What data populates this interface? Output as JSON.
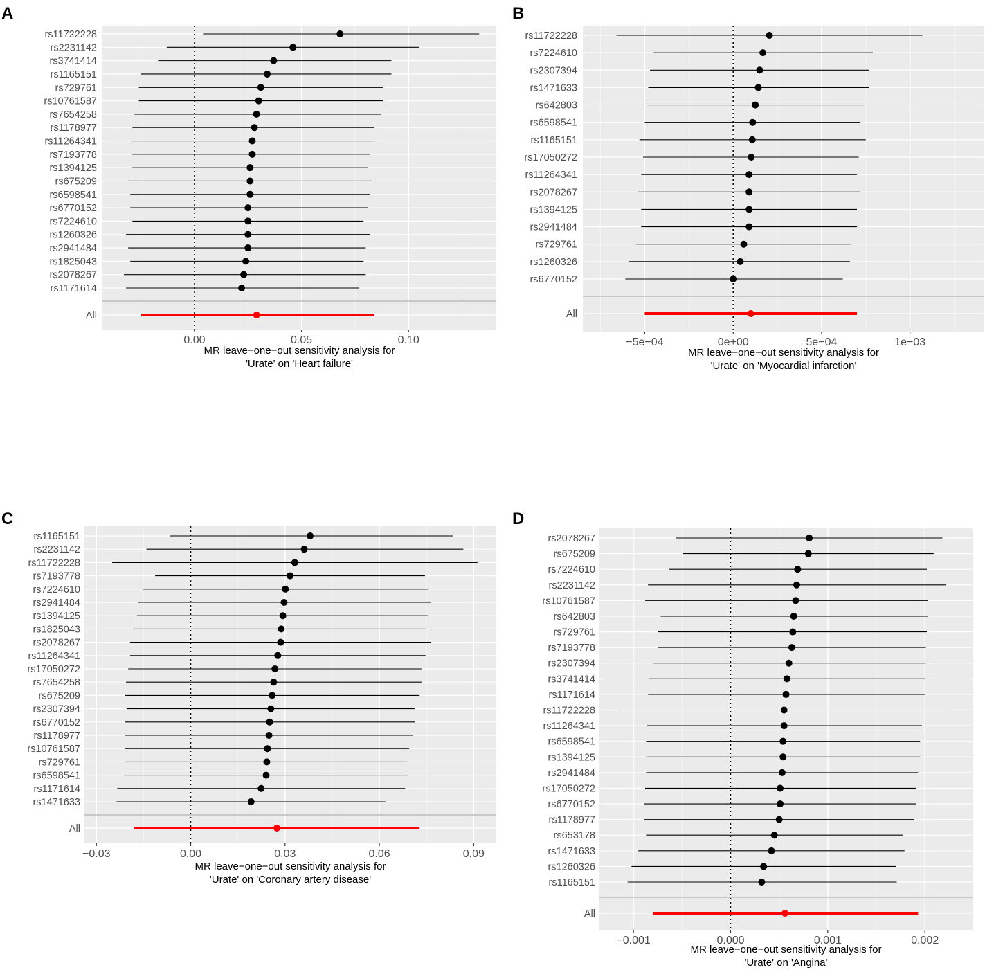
{
  "chart_data": [
    {
      "panel_label": "A",
      "type": "forest",
      "title": "",
      "xlabel_lines": [
        "MR leave−one−out sensitivity analysis for",
        "'Urate' on 'Heart failure'"
      ],
      "xlim": [
        -0.043,
        0.141
      ],
      "xticks": [
        0.0,
        0.05,
        0.1
      ],
      "xtick_labels": [
        "0.00",
        "0.05",
        "0.10"
      ],
      "snps": [
        {
          "label": "rs11722228",
          "b": 0.068,
          "lo": 0.004,
          "hi": 0.133
        },
        {
          "label": "rs2231142",
          "b": 0.046,
          "lo": -0.013,
          "hi": 0.105
        },
        {
          "label": "rs3741414",
          "b": 0.037,
          "lo": -0.017,
          "hi": 0.092
        },
        {
          "label": "rs1165151",
          "b": 0.034,
          "lo": -0.025,
          "hi": 0.092
        },
        {
          "label": "rs729761",
          "b": 0.031,
          "lo": -0.026,
          "hi": 0.088
        },
        {
          "label": "rs10761587",
          "b": 0.03,
          "lo": -0.026,
          "hi": 0.088
        },
        {
          "label": "rs7654258",
          "b": 0.029,
          "lo": -0.028,
          "hi": 0.087
        },
        {
          "label": "rs1178977",
          "b": 0.028,
          "lo": -0.029,
          "hi": 0.084
        },
        {
          "label": "rs11264341",
          "b": 0.027,
          "lo": -0.029,
          "hi": 0.084
        },
        {
          "label": "rs7193778",
          "b": 0.027,
          "lo": -0.029,
          "hi": 0.082
        },
        {
          "label": "rs1394125",
          "b": 0.026,
          "lo": -0.029,
          "hi": 0.081
        },
        {
          "label": "rs675209",
          "b": 0.026,
          "lo": -0.031,
          "hi": 0.083
        },
        {
          "label": "rs6598541",
          "b": 0.026,
          "lo": -0.03,
          "hi": 0.082
        },
        {
          "label": "rs6770152",
          "b": 0.025,
          "lo": -0.03,
          "hi": 0.081
        },
        {
          "label": "rs7224610",
          "b": 0.025,
          "lo": -0.029,
          "hi": 0.079
        },
        {
          "label": "rs1260326",
          "b": 0.025,
          "lo": -0.032,
          "hi": 0.082
        },
        {
          "label": "rs2941484",
          "b": 0.025,
          "lo": -0.031,
          "hi": 0.08
        },
        {
          "label": "rs1825043",
          "b": 0.024,
          "lo": -0.03,
          "hi": 0.079
        },
        {
          "label": "rs2078267",
          "b": 0.023,
          "lo": -0.033,
          "hi": 0.08
        },
        {
          "label": "rs1171614",
          "b": 0.022,
          "lo": -0.032,
          "hi": 0.077
        }
      ],
      "overall": {
        "label": "All",
        "b": 0.029,
        "lo": -0.025,
        "hi": 0.084
      }
    },
    {
      "panel_label": "B",
      "type": "forest",
      "title": "",
      "xlabel_lines": [
        "MR leave−one−out sensitivity analysis for",
        "'Urate' on 'Myocardial infarction'"
      ],
      "xlim": [
        -0.00085,
        0.00142
      ],
      "xticks": [
        -0.0005,
        0.0,
        0.0005,
        0.001
      ],
      "xtick_labels": [
        "−5e−04",
        "0e+00",
        "5e−04",
        "1e−03"
      ],
      "snps": [
        {
          "label": "rs11722228",
          "b": 0.000205,
          "lo": -0.00066,
          "hi": 0.00107
        },
        {
          "label": "rs7224610",
          "b": 0.000168,
          "lo": -0.00045,
          "hi": 0.00079
        },
        {
          "label": "rs2307394",
          "b": 0.00015,
          "lo": -0.00047,
          "hi": 0.00077
        },
        {
          "label": "rs1471633",
          "b": 0.000142,
          "lo": -0.00048,
          "hi": 0.00077
        },
        {
          "label": "rs642803",
          "b": 0.000125,
          "lo": -0.00049,
          "hi": 0.00074
        },
        {
          "label": "rs6598541",
          "b": 0.00011,
          "lo": -0.0005,
          "hi": 0.00072
        },
        {
          "label": "rs1165151",
          "b": 0.000108,
          "lo": -0.00053,
          "hi": 0.00075
        },
        {
          "label": "rs17050272",
          "b": 0.000102,
          "lo": -0.00051,
          "hi": 0.00071
        },
        {
          "label": "rs11264341",
          "b": 9e-05,
          "lo": -0.00052,
          "hi": 0.0007
        },
        {
          "label": "rs2078267",
          "b": 9e-05,
          "lo": -0.00054,
          "hi": 0.00072
        },
        {
          "label": "rs1394125",
          "b": 9e-05,
          "lo": -0.00052,
          "hi": 0.0007
        },
        {
          "label": "rs2941484",
          "b": 9e-05,
          "lo": -0.00052,
          "hi": 0.0007
        },
        {
          "label": "rs729761",
          "b": 6e-05,
          "lo": -0.00055,
          "hi": 0.00067
        },
        {
          "label": "rs1260326",
          "b": 4e-05,
          "lo": -0.00059,
          "hi": 0.00066
        },
        {
          "label": "rs6770152",
          "b": 0.0,
          "lo": -0.00061,
          "hi": 0.00062
        }
      ],
      "overall": {
        "label": "All",
        "b": 0.0001,
        "lo": -0.0005,
        "hi": 0.0007
      }
    },
    {
      "panel_label": "C",
      "type": "forest",
      "title": "",
      "xlabel_lines": [
        "MR leave−one−out sensitivity analysis for",
        "'Urate' on 'Coronary artery disease'"
      ],
      "xlim": [
        -0.0338,
        0.0972
      ],
      "xticks": [
        -0.03,
        0.0,
        0.03,
        0.06,
        0.09
      ],
      "xtick_labels": [
        "−0.03",
        "0.00",
        "0.03",
        "0.06",
        "0.09"
      ],
      "snps": [
        {
          "label": "rs1165151",
          "b": 0.038,
          "lo": -0.0065,
          "hi": 0.0834
        },
        {
          "label": "rs2231142",
          "b": 0.0361,
          "lo": -0.0141,
          "hi": 0.0867
        },
        {
          "label": "rs11722228",
          "b": 0.0331,
          "lo": -0.025,
          "hi": 0.0912
        },
        {
          "label": "rs7193778",
          "b": 0.0316,
          "lo": -0.0113,
          "hi": 0.0745
        },
        {
          "label": "rs7224610",
          "b": 0.0301,
          "lo": -0.0152,
          "hi": 0.0754
        },
        {
          "label": "rs2941484",
          "b": 0.0297,
          "lo": -0.0167,
          "hi": 0.0763
        },
        {
          "label": "rs1394125",
          "b": 0.0293,
          "lo": -0.0171,
          "hi": 0.0754
        },
        {
          "label": "rs1825043",
          "b": 0.0288,
          "lo": -0.018,
          "hi": 0.0752
        },
        {
          "label": "rs2078267",
          "b": 0.0286,
          "lo": -0.0193,
          "hi": 0.0763
        },
        {
          "label": "rs11264341",
          "b": 0.0277,
          "lo": -0.0193,
          "hi": 0.0747
        },
        {
          "label": "rs17050272",
          "b": 0.0268,
          "lo": -0.0199,
          "hi": 0.0734
        },
        {
          "label": "rs7654258",
          "b": 0.0264,
          "lo": -0.0206,
          "hi": 0.0734
        },
        {
          "label": "rs675209",
          "b": 0.0259,
          "lo": -0.021,
          "hi": 0.0728
        },
        {
          "label": "rs2307394",
          "b": 0.0255,
          "lo": -0.0204,
          "hi": 0.0713
        },
        {
          "label": "rs6770152",
          "b": 0.0251,
          "lo": -0.021,
          "hi": 0.0713
        },
        {
          "label": "rs1178977",
          "b": 0.0249,
          "lo": -0.021,
          "hi": 0.0708
        },
        {
          "label": "rs10761587",
          "b": 0.0244,
          "lo": -0.021,
          "hi": 0.0695
        },
        {
          "label": "rs729761",
          "b": 0.0242,
          "lo": -0.021,
          "hi": 0.0693
        },
        {
          "label": "rs6598541",
          "b": 0.024,
          "lo": -0.0212,
          "hi": 0.069
        },
        {
          "label": "rs1171614",
          "b": 0.0224,
          "lo": -0.0234,
          "hi": 0.0682
        },
        {
          "label": "rs1471633",
          "b": 0.0192,
          "lo": -0.0236,
          "hi": 0.0619
        }
      ],
      "overall": {
        "label": "All",
        "b": 0.0274,
        "lo": -0.018,
        "hi": 0.0728
      }
    },
    {
      "panel_label": "D",
      "type": "forest",
      "title": "",
      "xlabel_lines": [
        "MR leave−one−out sensitivity analysis for",
        "'Urate' on 'Angina'"
      ],
      "xlim": [
        -0.00135,
        0.00249
      ],
      "xticks": [
        -0.001,
        0.0,
        0.001,
        0.002
      ],
      "xtick_labels": [
        "−0.001",
        "0.000",
        "0.001",
        "0.002"
      ],
      "snps": [
        {
          "label": "rs2078267",
          "b": 0.00081,
          "lo": -0.00056,
          "hi": 0.00218
        },
        {
          "label": "rs675209",
          "b": 0.0008,
          "lo": -0.00049,
          "hi": 0.00209
        },
        {
          "label": "rs7224610",
          "b": 0.00069,
          "lo": -0.00063,
          "hi": 0.00202
        },
        {
          "label": "rs2231142",
          "b": 0.00068,
          "lo": -0.00085,
          "hi": 0.00222
        },
        {
          "label": "rs10761587",
          "b": 0.00067,
          "lo": -0.00088,
          "hi": 0.00203
        },
        {
          "label": "rs642803",
          "b": 0.00065,
          "lo": -0.00072,
          "hi": 0.00203
        },
        {
          "label": "rs729761",
          "b": 0.00064,
          "lo": -0.00075,
          "hi": 0.00202
        },
        {
          "label": "rs7193778",
          "b": 0.00063,
          "lo": -0.00075,
          "hi": 0.00201
        },
        {
          "label": "rs2307394",
          "b": 0.0006,
          "lo": -0.0008,
          "hi": 0.00201
        },
        {
          "label": "rs3741414",
          "b": 0.00058,
          "lo": -0.00084,
          "hi": 0.00201
        },
        {
          "label": "rs1171614",
          "b": 0.00057,
          "lo": -0.00085,
          "hi": 0.002
        },
        {
          "label": "rs11722228",
          "b": 0.00055,
          "lo": -0.00118,
          "hi": 0.00228
        },
        {
          "label": "rs11264341",
          "b": 0.00055,
          "lo": -0.00086,
          "hi": 0.00197
        },
        {
          "label": "rs6598541",
          "b": 0.00054,
          "lo": -0.00087,
          "hi": 0.00195
        },
        {
          "label": "rs1394125",
          "b": 0.00054,
          "lo": -0.00087,
          "hi": 0.00195
        },
        {
          "label": "rs2941484",
          "b": 0.00053,
          "lo": -0.00087,
          "hi": 0.00193
        },
        {
          "label": "rs17050272",
          "b": 0.00051,
          "lo": -0.00088,
          "hi": 0.00191
        },
        {
          "label": "rs6770152",
          "b": 0.00051,
          "lo": -0.00089,
          "hi": 0.00191
        },
        {
          "label": "rs1178977",
          "b": 0.0005,
          "lo": -0.00089,
          "hi": 0.00189
        },
        {
          "label": "rs653178",
          "b": 0.00045,
          "lo": -0.00087,
          "hi": 0.00177
        },
        {
          "label": "rs1471633",
          "b": 0.00042,
          "lo": -0.00095,
          "hi": 0.00179
        },
        {
          "label": "rs1260326",
          "b": 0.00034,
          "lo": -0.00102,
          "hi": 0.0017
        },
        {
          "label": "rs1165151",
          "b": 0.00032,
          "lo": -0.00106,
          "hi": 0.00171
        }
      ],
      "overall": {
        "label": "All",
        "b": 0.00056,
        "lo": -0.0008,
        "hi": 0.00193
      }
    }
  ],
  "colors": {
    "panel_bg": "#ebebeb",
    "grid_major": "#ffffff",
    "grid_minor": "#f4f4f4",
    "snp_line": "#000000",
    "overall": "#ff0000",
    "separator": "#bdbdbd",
    "tick_text": "#4d4d4d"
  }
}
